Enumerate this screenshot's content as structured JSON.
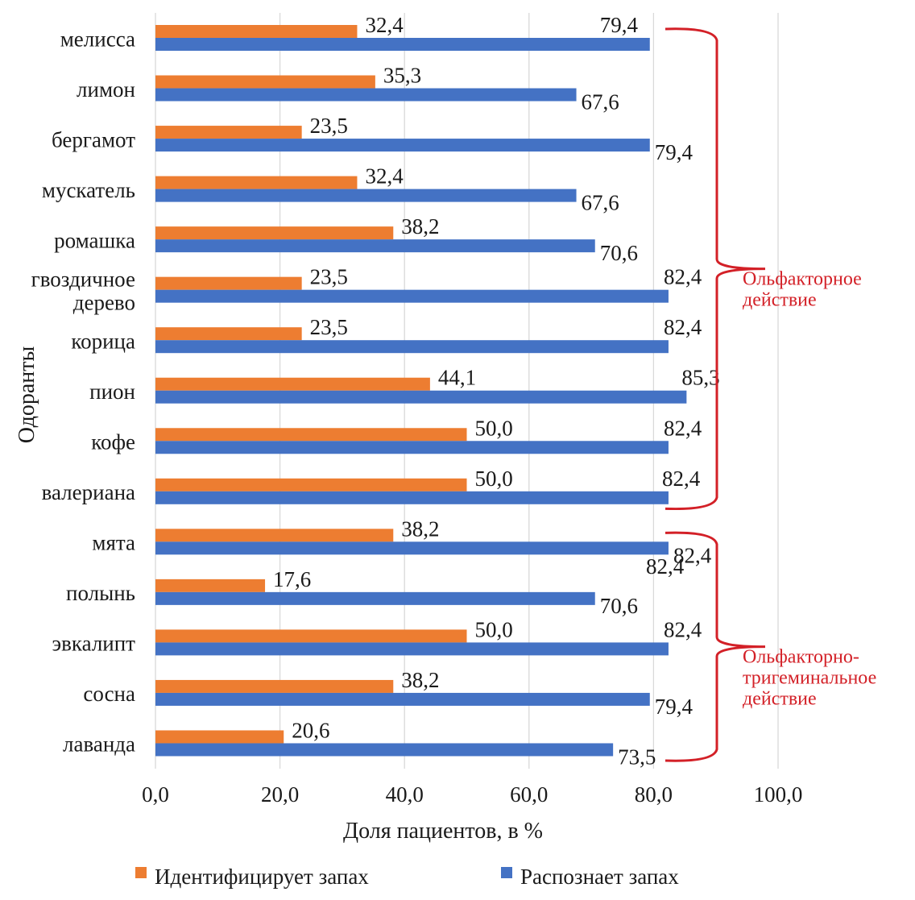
{
  "chart_data": {
    "type": "bar",
    "orientation": "horizontal",
    "categories": [
      "мелисса",
      "лимон",
      "бергамот",
      "мускатель",
      "ромашка",
      "гвоздичное дерево",
      "корица",
      "пион",
      "кофе",
      "валериана",
      "мята",
      "полынь",
      "эвкалипт",
      "сосна",
      "лаванда"
    ],
    "category_lines": [
      [
        "мелисса"
      ],
      [
        "лимон"
      ],
      [
        "бергамот"
      ],
      [
        "мускатель"
      ],
      [
        "ромашка"
      ],
      [
        "гвоздичное",
        "дерево"
      ],
      [
        "корица"
      ],
      [
        "пион"
      ],
      [
        "кофе"
      ],
      [
        "валериана"
      ],
      [
        "мята"
      ],
      [
        "полынь"
      ],
      [
        "эвкалипт"
      ],
      [
        "сосна"
      ],
      [
        "лаванда"
      ]
    ],
    "series": [
      {
        "name": "Идентифицирует запах",
        "color": "#ed7d31",
        "values": [
          32.4,
          35.3,
          23.5,
          32.4,
          38.2,
          23.5,
          23.5,
          44.1,
          50.0,
          50.0,
          38.2,
          17.6,
          50.0,
          38.2,
          20.6
        ],
        "labels": [
          "32,4",
          "35,3",
          "23,5",
          "32,4",
          "38,2",
          "23,5",
          "23,5",
          "44,1",
          "50,0",
          "50,0",
          "38,2",
          "17,6",
          "50,0",
          "38,2",
          "20,6"
        ]
      },
      {
        "name": "Распознает запах",
        "color": "#4472c4",
        "values": [
          79.4,
          67.6,
          79.4,
          67.6,
          70.6,
          82.4,
          82.4,
          85.3,
          82.4,
          82.4,
          82.4,
          70.6,
          82.4,
          79.4,
          73.5
        ],
        "labels": [
          "79,4",
          "67,6",
          "79,4",
          "67,6",
          "70,6",
          "82,4",
          "82,4",
          "85,3",
          "82,4",
          "82,4",
          "82,4",
          "70,6",
          "82,4",
          "79,4",
          "73,5"
        ]
      }
    ],
    "xlim": [
      0,
      100
    ],
    "x_ticks": [
      0,
      20,
      40,
      60,
      80,
      100
    ],
    "x_tick_labels": [
      "0,0",
      "20,0",
      "40,0",
      "60,0",
      "80,0",
      "100,0"
    ],
    "xlabel": "Доля пациентов, в %",
    "ylabel": "Одоранты",
    "grid": "vertical",
    "legend_position": "bottom",
    "annotations": [
      {
        "lines": [
          "Ольфакторное",
          "действие"
        ],
        "from_category": "мелисса",
        "to_category": "валериана",
        "color": "#d32027"
      },
      {
        "lines": [
          "Ольфакторно-",
          "тригеминальное",
          "действие"
        ],
        "from_category": "мята",
        "to_category": "лаванда",
        "color": "#d32027"
      }
    ]
  }
}
